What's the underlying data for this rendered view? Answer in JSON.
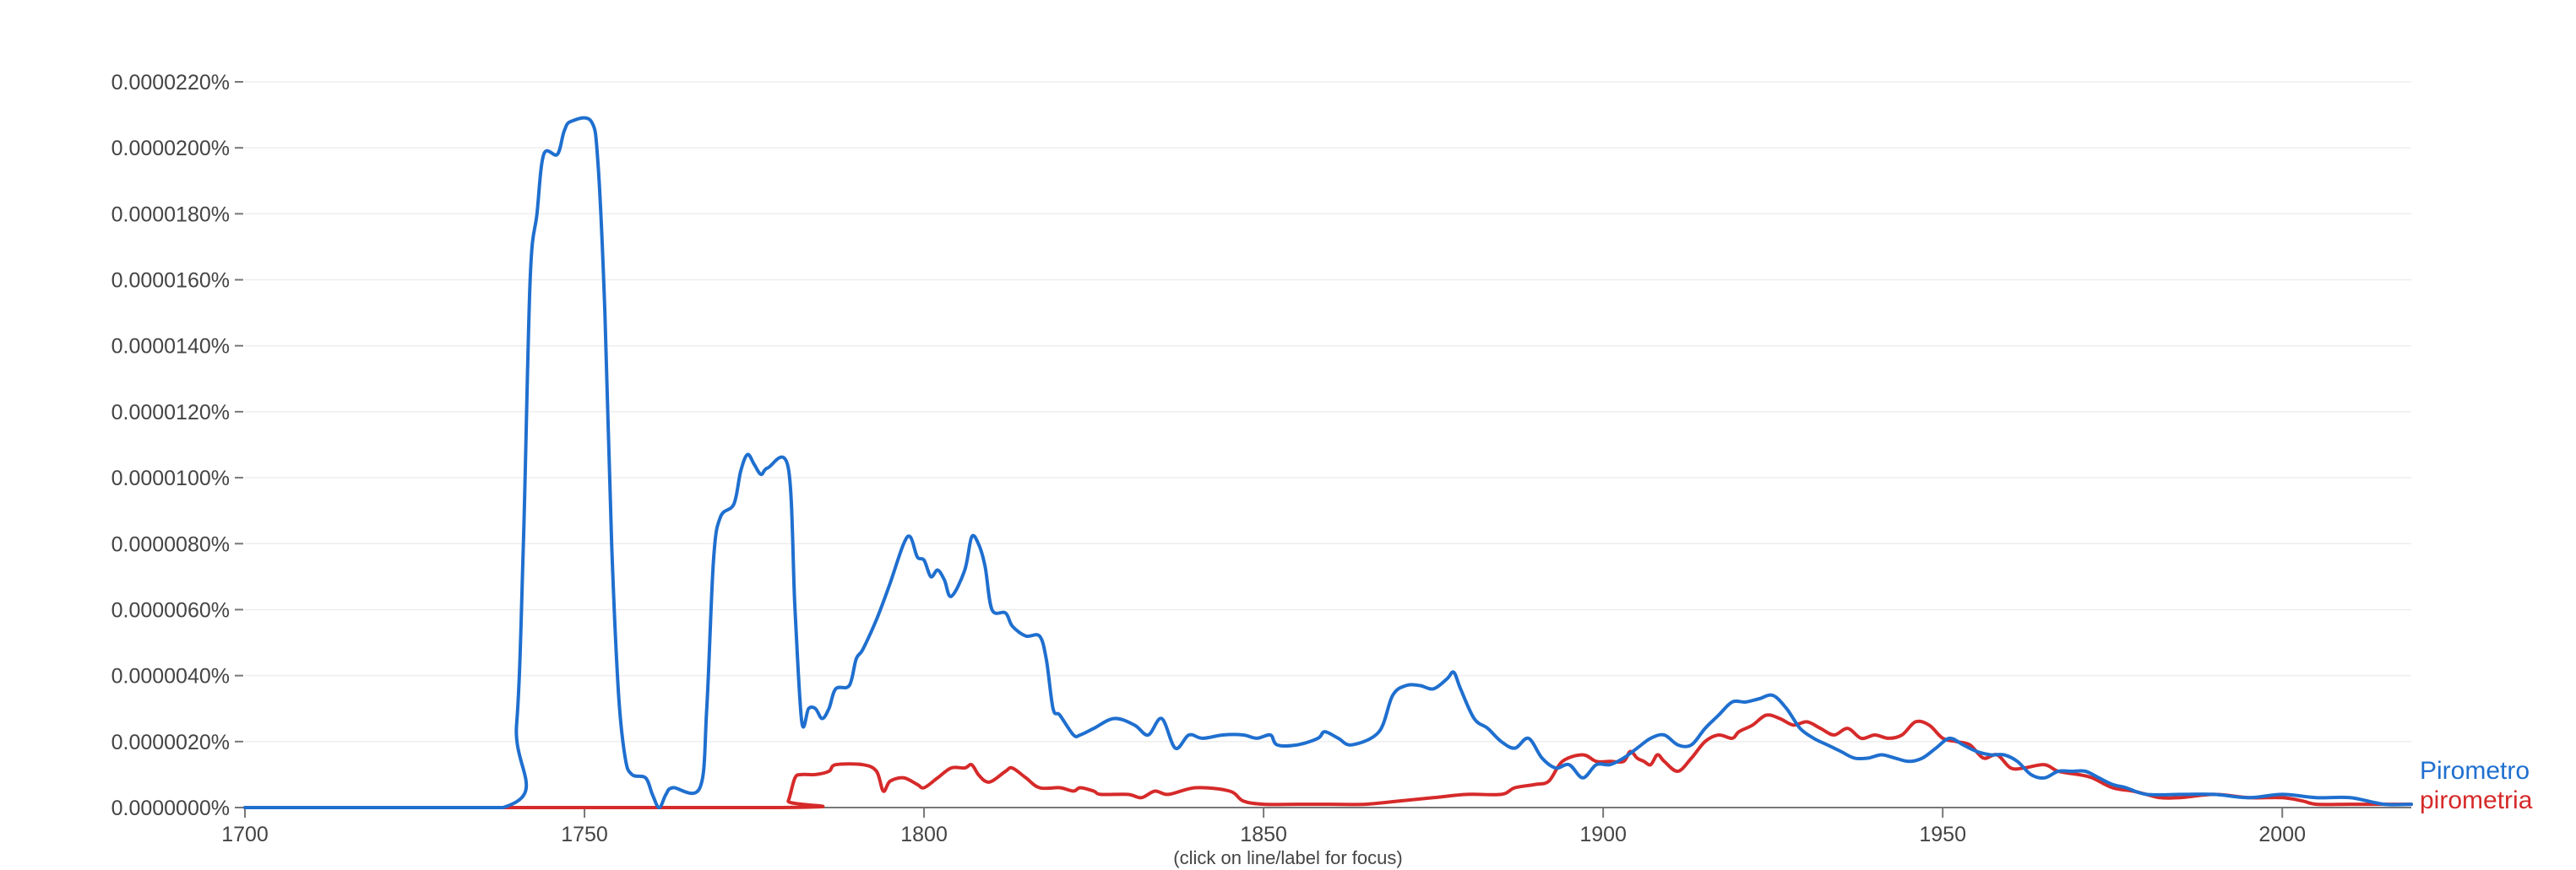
{
  "footer_note": "(click on line/label for focus)",
  "colors": {
    "grid": "#eeeeee",
    "axis": "#777777",
    "text": "#444444"
  },
  "chart_data": {
    "type": "line",
    "title": "",
    "xlabel": "",
    "ylabel": "",
    "xlim": [
      1700,
      2019
    ],
    "ylim": [
      0,
      2.2e-05
    ],
    "x_ticks": [
      1700,
      1750,
      1800,
      1850,
      1900,
      1950,
      2000
    ],
    "y_ticks": [
      0,
      2e-06,
      4e-06,
      6e-06,
      8e-06,
      1e-05,
      1.2e-05,
      1.4e-05,
      1.6e-05,
      1.8e-05,
      2e-05,
      2.2e-05
    ],
    "y_tick_labels": [
      "0.0000000%",
      "0.0000020%",
      "0.0000040%",
      "0.0000060%",
      "0.0000080%",
      "0.0000100%",
      "0.0000120%",
      "0.0000140%",
      "0.0000160%",
      "0.0000180%",
      "0.0000200%",
      "0.0000220%"
    ],
    "grid": true,
    "legend": "right end of lines",
    "series": [
      {
        "name": "Pirometro",
        "color": "#1f6fcf",
        "points": [
          [
            1700,
            0
          ],
          [
            1738,
            0
          ],
          [
            1740,
            2.5e-06
          ],
          [
            1741,
            8e-06
          ],
          [
            1742,
            1.6e-05
          ],
          [
            1743,
            1.8e-05
          ],
          [
            1744,
            1.98e-05
          ],
          [
            1746,
            1.98e-05
          ],
          [
            1747,
            2.05e-05
          ],
          [
            1748,
            2.08e-05
          ],
          [
            1751,
            2.08e-05
          ],
          [
            1752,
            1.95e-05
          ],
          [
            1753,
            1.5e-05
          ],
          [
            1754,
            8e-06
          ],
          [
            1755,
            3.5e-06
          ],
          [
            1756,
            1.5e-06
          ],
          [
            1757,
            1e-06
          ],
          [
            1759,
            9e-07
          ],
          [
            1760,
            4e-07
          ],
          [
            1761,
            0
          ],
          [
            1762,
            4e-07
          ],
          [
            1763,
            6e-07
          ],
          [
            1767,
            6e-07
          ],
          [
            1768,
            3e-06
          ],
          [
            1769,
            7.5e-06
          ],
          [
            1770,
            8.8e-06
          ],
          [
            1772,
            9.2e-06
          ],
          [
            1773,
            1.02e-05
          ],
          [
            1774,
            1.07e-05
          ],
          [
            1775,
            1.04e-05
          ],
          [
            1776,
            1.01e-05
          ],
          [
            1777,
            1.03e-05
          ],
          [
            1780,
            1.03e-05
          ],
          [
            1781,
            6e-06
          ],
          [
            1782,
            2.6e-06
          ],
          [
            1783,
            3e-06
          ],
          [
            1784,
            3e-06
          ],
          [
            1785,
            2.7e-06
          ],
          [
            1786,
            3e-06
          ],
          [
            1787,
            3.6e-06
          ],
          [
            1789,
            3.7e-06
          ],
          [
            1790,
            4.5e-06
          ],
          [
            1791,
            4.8e-06
          ],
          [
            1793,
            5.7e-06
          ],
          [
            1795,
            6.8e-06
          ],
          [
            1797,
            8e-06
          ],
          [
            1798,
            8.2e-06
          ],
          [
            1799,
            7.6e-06
          ],
          [
            1800,
            7.5e-06
          ],
          [
            1801,
            7e-06
          ],
          [
            1802,
            7.2e-06
          ],
          [
            1803,
            6.9e-06
          ],
          [
            1804,
            6.4e-06
          ],
          [
            1806,
            7.2e-06
          ],
          [
            1807,
            8.2e-06
          ],
          [
            1808,
            8e-06
          ],
          [
            1809,
            7.3e-06
          ],
          [
            1810,
            6e-06
          ],
          [
            1812,
            5.9e-06
          ],
          [
            1813,
            5.5e-06
          ],
          [
            1815,
            5.2e-06
          ],
          [
            1817,
            5.2e-06
          ],
          [
            1818,
            4.5e-06
          ],
          [
            1819,
            3e-06
          ],
          [
            1820,
            2.8e-06
          ],
          [
            1822,
            2.2e-06
          ],
          [
            1823,
            2.2e-06
          ],
          [
            1825,
            2.4e-06
          ],
          [
            1828,
            2.7e-06
          ],
          [
            1831,
            2.5e-06
          ],
          [
            1833,
            2.2e-06
          ],
          [
            1835,
            2.7e-06
          ],
          [
            1837,
            1.8e-06
          ],
          [
            1839,
            2.2e-06
          ],
          [
            1841,
            2.1e-06
          ],
          [
            1844,
            2.2e-06
          ],
          [
            1847,
            2.2e-06
          ],
          [
            1849,
            2.1e-06
          ],
          [
            1851,
            2.2e-06
          ],
          [
            1852,
            1.9e-06
          ],
          [
            1855,
            1.9e-06
          ],
          [
            1858,
            2.1e-06
          ],
          [
            1859,
            2.3e-06
          ],
          [
            1861,
            2.1e-06
          ],
          [
            1863,
            1.9e-06
          ],
          [
            1867,
            2.3e-06
          ],
          [
            1869,
            3.4e-06
          ],
          [
            1871,
            3.7e-06
          ],
          [
            1873,
            3.7e-06
          ],
          [
            1875,
            3.6e-06
          ],
          [
            1877,
            3.9e-06
          ],
          [
            1878,
            4.1e-06
          ],
          [
            1879,
            3.6e-06
          ],
          [
            1881,
            2.7e-06
          ],
          [
            1883,
            2.4e-06
          ],
          [
            1885,
            2e-06
          ],
          [
            1887,
            1.8e-06
          ],
          [
            1889,
            2.1e-06
          ],
          [
            1891,
            1.5e-06
          ],
          [
            1893,
            1.2e-06
          ],
          [
            1895,
            1.3e-06
          ],
          [
            1897,
            9e-07
          ],
          [
            1899,
            1.3e-06
          ],
          [
            1901,
            1.3e-06
          ],
          [
            1903,
            1.5e-06
          ],
          [
            1905,
            1.8e-06
          ],
          [
            1907,
            2.1e-06
          ],
          [
            1909,
            2.2e-06
          ],
          [
            1911,
            1.9e-06
          ],
          [
            1913,
            1.9e-06
          ],
          [
            1915,
            2.4e-06
          ],
          [
            1917,
            2.8e-06
          ],
          [
            1919,
            3.2e-06
          ],
          [
            1921,
            3.2e-06
          ],
          [
            1923,
            3.3e-06
          ],
          [
            1925,
            3.4e-06
          ],
          [
            1927,
            3e-06
          ],
          [
            1929,
            2.4e-06
          ],
          [
            1931,
            2.1e-06
          ],
          [
            1933,
            1.9e-06
          ],
          [
            1935,
            1.7e-06
          ],
          [
            1937,
            1.5e-06
          ],
          [
            1939,
            1.5e-06
          ],
          [
            1941,
            1.6e-06
          ],
          [
            1943,
            1.5e-06
          ],
          [
            1945,
            1.4e-06
          ],
          [
            1947,
            1.5e-06
          ],
          [
            1949,
            1.8e-06
          ],
          [
            1951,
            2.1e-06
          ],
          [
            1953,
            1.9e-06
          ],
          [
            1955,
            1.7e-06
          ],
          [
            1957,
            1.6e-06
          ],
          [
            1959,
            1.6e-06
          ],
          [
            1961,
            1.4e-06
          ],
          [
            1963,
            1e-06
          ],
          [
            1965,
            9e-07
          ],
          [
            1967,
            1.1e-06
          ],
          [
            1969,
            1.1e-06
          ],
          [
            1971,
            1.1e-06
          ],
          [
            1973,
            9e-07
          ],
          [
            1975,
            7e-07
          ],
          [
            1977,
            6e-07
          ],
          [
            1980,
            4e-07
          ],
          [
            1985,
            4e-07
          ],
          [
            1990,
            4e-07
          ],
          [
            1995,
            3e-07
          ],
          [
            2000,
            4e-07
          ],
          [
            2005,
            3e-07
          ],
          [
            2010,
            3e-07
          ],
          [
            2015,
            1e-07
          ],
          [
            2019,
            1e-07
          ]
        ]
      },
      {
        "name": "pirometria",
        "color": "#d62a2a",
        "points": [
          [
            1700,
            0
          ],
          [
            1779,
            0
          ],
          [
            1780,
            2e-07
          ],
          [
            1781,
            9e-07
          ],
          [
            1782,
            1e-06
          ],
          [
            1784,
            1e-06
          ],
          [
            1786,
            1.1e-06
          ],
          [
            1787,
            1.3e-06
          ],
          [
            1791,
            1.3e-06
          ],
          [
            1793,
            1.1e-06
          ],
          [
            1794,
            5e-07
          ],
          [
            1795,
            8e-07
          ],
          [
            1797,
            9e-07
          ],
          [
            1799,
            7e-07
          ],
          [
            1800,
            6e-07
          ],
          [
            1802,
            9e-07
          ],
          [
            1804,
            1.2e-06
          ],
          [
            1806,
            1.2e-06
          ],
          [
            1807,
            1.3e-06
          ],
          [
            1808,
            1e-06
          ],
          [
            1809,
            8e-07
          ],
          [
            1810,
            8e-07
          ],
          [
            1812,
            1.1e-06
          ],
          [
            1813,
            1.2e-06
          ],
          [
            1815,
            9e-07
          ],
          [
            1817,
            6e-07
          ],
          [
            1820,
            6e-07
          ],
          [
            1822,
            5e-07
          ],
          [
            1823,
            6e-07
          ],
          [
            1825,
            5e-07
          ],
          [
            1826,
            4e-07
          ],
          [
            1830,
            4e-07
          ],
          [
            1832,
            3e-07
          ],
          [
            1834,
            5e-07
          ],
          [
            1836,
            4e-07
          ],
          [
            1840,
            6e-07
          ],
          [
            1845,
            5e-07
          ],
          [
            1847,
            2e-07
          ],
          [
            1850,
            1e-07
          ],
          [
            1855,
            1e-07
          ],
          [
            1860,
            1e-07
          ],
          [
            1865,
            1e-07
          ],
          [
            1870,
            2e-07
          ],
          [
            1875,
            3e-07
          ],
          [
            1880,
            4e-07
          ],
          [
            1885,
            4e-07
          ],
          [
            1887,
            6e-07
          ],
          [
            1890,
            7e-07
          ],
          [
            1892,
            8e-07
          ],
          [
            1894,
            1.4e-06
          ],
          [
            1897,
            1.6e-06
          ],
          [
            1899,
            1.4e-06
          ],
          [
            1901,
            1.4e-06
          ],
          [
            1903,
            1.4e-06
          ],
          [
            1904,
            1.7e-06
          ],
          [
            1905,
            1.5e-06
          ],
          [
            1906,
            1.4e-06
          ],
          [
            1907,
            1.3e-06
          ],
          [
            1908,
            1.6e-06
          ],
          [
            1909,
            1.4e-06
          ],
          [
            1911,
            1.1e-06
          ],
          [
            1913,
            1.5e-06
          ],
          [
            1915,
            2e-06
          ],
          [
            1917,
            2.2e-06
          ],
          [
            1919,
            2.1e-06
          ],
          [
            1920,
            2.3e-06
          ],
          [
            1922,
            2.5e-06
          ],
          [
            1924,
            2.8e-06
          ],
          [
            1926,
            2.7e-06
          ],
          [
            1928,
            2.5e-06
          ],
          [
            1930,
            2.6e-06
          ],
          [
            1932,
            2.4e-06
          ],
          [
            1934,
            2.2e-06
          ],
          [
            1936,
            2.4e-06
          ],
          [
            1938,
            2.1e-06
          ],
          [
            1940,
            2.2e-06
          ],
          [
            1942,
            2.1e-06
          ],
          [
            1944,
            2.2e-06
          ],
          [
            1946,
            2.6e-06
          ],
          [
            1948,
            2.5e-06
          ],
          [
            1950,
            2.1e-06
          ],
          [
            1952,
            2e-06
          ],
          [
            1954,
            1.9e-06
          ],
          [
            1956,
            1.5e-06
          ],
          [
            1958,
            1.6e-06
          ],
          [
            1960,
            1.2e-06
          ],
          [
            1962,
            1.2e-06
          ],
          [
            1965,
            1.3e-06
          ],
          [
            1967,
            1.1e-06
          ],
          [
            1970,
            1e-06
          ],
          [
            1972,
            9e-07
          ],
          [
            1975,
            6e-07
          ],
          [
            1978,
            5e-07
          ],
          [
            1980,
            4e-07
          ],
          [
            1982,
            3e-07
          ],
          [
            1985,
            3e-07
          ],
          [
            1990,
            4e-07
          ],
          [
            1995,
            3e-07
          ],
          [
            2000,
            3e-07
          ],
          [
            2003,
            2e-07
          ],
          [
            2005,
            1e-07
          ],
          [
            2010,
            1e-07
          ],
          [
            2015,
            1e-07
          ],
          [
            2019,
            1e-07
          ]
        ]
      }
    ]
  }
}
